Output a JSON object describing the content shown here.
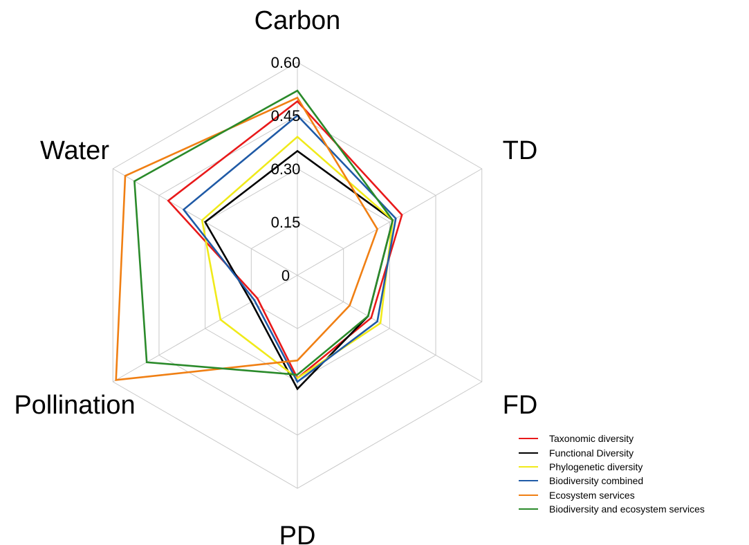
{
  "chart_data": {
    "type": "radar",
    "axes": [
      "Carbon",
      "TD",
      "FD",
      "PD",
      "Pollination",
      "Water"
    ],
    "range": [
      0,
      0.6
    ],
    "ticks": [
      "0",
      "0.15",
      "0.30",
      "0.45",
      "0.60"
    ],
    "tick_values": [
      0,
      0.15,
      0.3,
      0.45,
      0.6
    ],
    "grid": true,
    "legend_position": "bottom-right",
    "series": [
      {
        "name": "Taxonomic diversity",
        "color": "#e8191a",
        "values": [
          0.49,
          0.34,
          0.24,
          0.29,
          0.13,
          0.42
        ]
      },
      {
        "name": "Functional Diversity",
        "color": "#000000",
        "values": [
          0.35,
          0.31,
          0.23,
          0.32,
          0.15,
          0.3
        ]
      },
      {
        "name": "Phylogenetic diversity",
        "color": "#f0ea1a",
        "values": [
          0.39,
          0.31,
          0.27,
          0.29,
          0.25,
          0.31
        ]
      },
      {
        "name": "Biodiversity combined",
        "color": "#1f5aa6",
        "values": [
          0.45,
          0.32,
          0.26,
          0.3,
          0.14,
          0.37
        ]
      },
      {
        "name": "Ecosystem services",
        "color": "#f07f13",
        "values": [
          0.5,
          0.26,
          0.17,
          0.24,
          0.59,
          0.56
        ]
      },
      {
        "name": "Biodiversity and ecosystem services",
        "color": "#2a8a2a",
        "values": [
          0.52,
          0.31,
          0.23,
          0.28,
          0.49,
          0.53
        ]
      }
    ]
  }
}
